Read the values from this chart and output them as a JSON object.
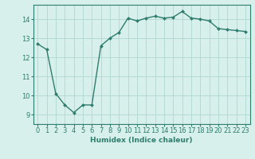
{
  "x": [
    0,
    1,
    2,
    3,
    4,
    5,
    6,
    7,
    8,
    9,
    10,
    11,
    12,
    13,
    14,
    15,
    16,
    17,
    18,
    19,
    20,
    21,
    22,
    23
  ],
  "y": [
    12.7,
    12.4,
    10.1,
    9.5,
    9.1,
    9.5,
    9.5,
    12.6,
    13.0,
    13.3,
    14.05,
    13.9,
    14.05,
    14.15,
    14.05,
    14.1,
    14.4,
    14.05,
    14.0,
    13.9,
    13.5,
    13.45,
    13.4,
    13.35
  ],
  "line_color": "#2e7d6e",
  "marker": "D",
  "markersize": 2.0,
  "linewidth": 1.0,
  "xlabel": "Humidex (Indice chaleur)",
  "xlabel_fontsize": 6.5,
  "ylim": [
    8.5,
    14.75
  ],
  "xlim": [
    -0.5,
    23.5
  ],
  "yticks": [
    9,
    10,
    11,
    12,
    13,
    14
  ],
  "xticks": [
    0,
    1,
    2,
    3,
    4,
    5,
    6,
    7,
    8,
    9,
    10,
    11,
    12,
    13,
    14,
    15,
    16,
    17,
    18,
    19,
    20,
    21,
    22,
    23
  ],
  "grid_color": "#b0d8d0",
  "bg_color": "#d8f0ec",
  "tick_color": "#2e7d6e",
  "tick_fontsize": 6.0,
  "figsize": [
    3.2,
    2.0
  ],
  "dpi": 100
}
